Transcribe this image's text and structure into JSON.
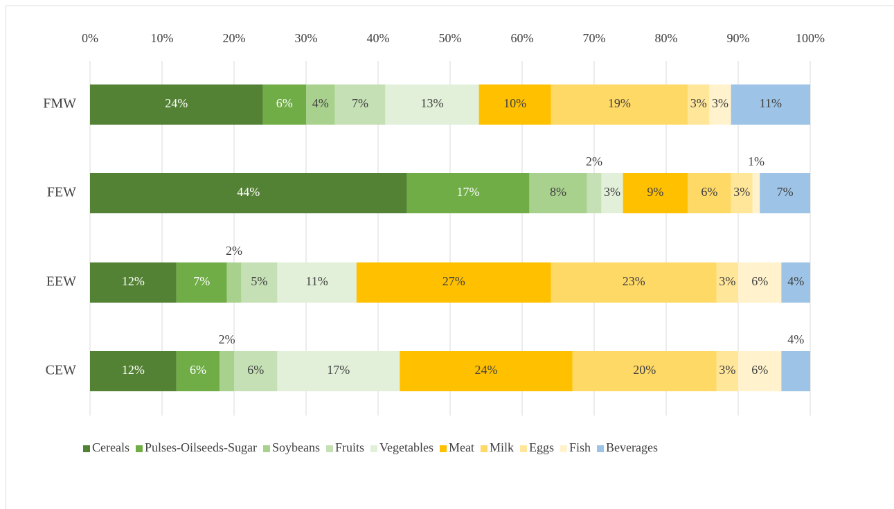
{
  "chart_data": {
    "type": "stacked-bar-horizontal",
    "categories": [
      "FMW",
      "FEW",
      "EEW",
      "CEW"
    ],
    "series": [
      {
        "name": "Cereals",
        "color": "#548235",
        "values": [
          24,
          44,
          12,
          12
        ],
        "value_labels": [
          "24%",
          "44%",
          "12%",
          "12%"
        ]
      },
      {
        "name": "Pulses-Oilseeds-Sugar",
        "color": "#70ad47",
        "values": [
          6,
          17,
          7,
          6
        ],
        "value_labels": [
          "6%",
          "17%",
          "7%",
          "6%"
        ]
      },
      {
        "name": "Soybeans",
        "color": "#a9d18e",
        "values": [
          4,
          8,
          2,
          2
        ],
        "value_labels": [
          "4%",
          "8%",
          "2%",
          "2%"
        ]
      },
      {
        "name": "Fruits",
        "color": "#c5e0b4",
        "values": [
          7,
          2,
          5,
          6
        ],
        "value_labels": [
          "7%",
          "2%",
          "5%",
          "6%"
        ]
      },
      {
        "name": "Vegetables",
        "color": "#e2f0d9",
        "values": [
          13,
          3,
          11,
          17
        ],
        "value_labels": [
          "13%",
          "3%",
          "11%",
          "17%"
        ]
      },
      {
        "name": "Meat",
        "color": "#ffc000",
        "values": [
          10,
          9,
          27,
          24
        ],
        "value_labels": [
          "10%",
          "9%",
          "27%",
          "24%"
        ]
      },
      {
        "name": "Milk",
        "color": "#ffd966",
        "values": [
          19,
          6,
          23,
          20
        ],
        "value_labels": [
          "19%",
          "6%",
          "23%",
          "20%"
        ]
      },
      {
        "name": "Eggs",
        "color": "#ffe699",
        "values": [
          3,
          3,
          3,
          3
        ],
        "value_labels": [
          "3%",
          "3%",
          "3%",
          "3%"
        ]
      },
      {
        "name": "Fish",
        "color": "#fff2cc",
        "values": [
          3,
          1,
          6,
          6
        ],
        "value_labels": [
          "3%",
          "1%",
          "6%",
          "6%"
        ]
      },
      {
        "name": "Beverages",
        "color": "#9dc3e6",
        "values": [
          11,
          7,
          4,
          4
        ],
        "value_labels": [
          "11%",
          "7%",
          "4%",
          "4%"
        ]
      }
    ],
    "xlim": [
      0,
      100
    ],
    "xticks": [
      {
        "value": 0,
        "label": "0%"
      },
      {
        "value": 10,
        "label": "10%"
      },
      {
        "value": 20,
        "label": "20%"
      },
      {
        "value": 30,
        "label": "30%"
      },
      {
        "value": 40,
        "label": "40%"
      },
      {
        "value": 50,
        "label": "50%"
      },
      {
        "value": 60,
        "label": "60%"
      },
      {
        "value": 70,
        "label": "70%"
      },
      {
        "value": 80,
        "label": "80%"
      },
      {
        "value": 90,
        "label": "90%"
      },
      {
        "value": 100,
        "label": "100%"
      }
    ],
    "grid": true,
    "legend": "bottom"
  }
}
